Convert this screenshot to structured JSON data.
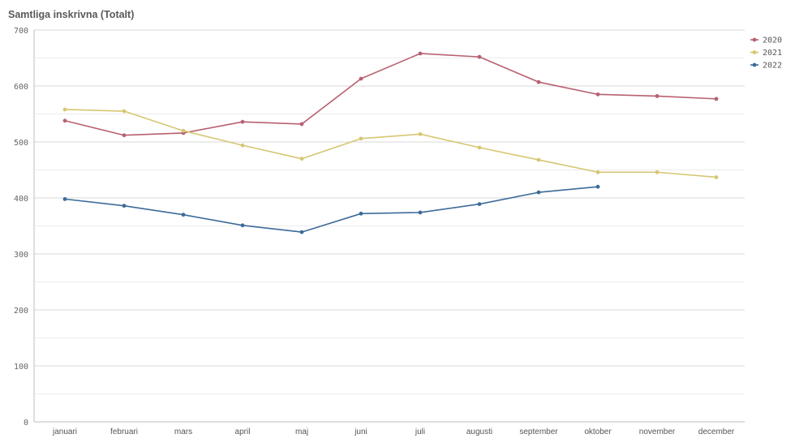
{
  "chart_data": {
    "type": "line",
    "title": "Samtliga inskrivna (Totalt)",
    "xlabel": "",
    "ylabel": "",
    "categories": [
      "januari",
      "februari",
      "mars",
      "april",
      "maj",
      "juni",
      "juli",
      "augusti",
      "september",
      "oktober",
      "november",
      "december"
    ],
    "ylim": [
      0,
      700
    ],
    "yticks": [
      0,
      100,
      200,
      300,
      400,
      500,
      600,
      700
    ],
    "grid": true,
    "legend_position": "top-right",
    "series": [
      {
        "name": "2020",
        "color": "#b7606f",
        "values": [
          538,
          512,
          516,
          536,
          532,
          613,
          658,
          652,
          607,
          585,
          582,
          577
        ]
      },
      {
        "name": "2021",
        "color": "#d7c672",
        "values": [
          558,
          555,
          520,
          494,
          470,
          506,
          514,
          490,
          468,
          446,
          446,
          437
        ]
      },
      {
        "name": "2022",
        "color": "#3d6b99",
        "values": [
          398,
          386,
          370,
          351,
          339,
          372,
          374,
          389,
          410,
          420,
          null,
          null
        ]
      }
    ]
  }
}
